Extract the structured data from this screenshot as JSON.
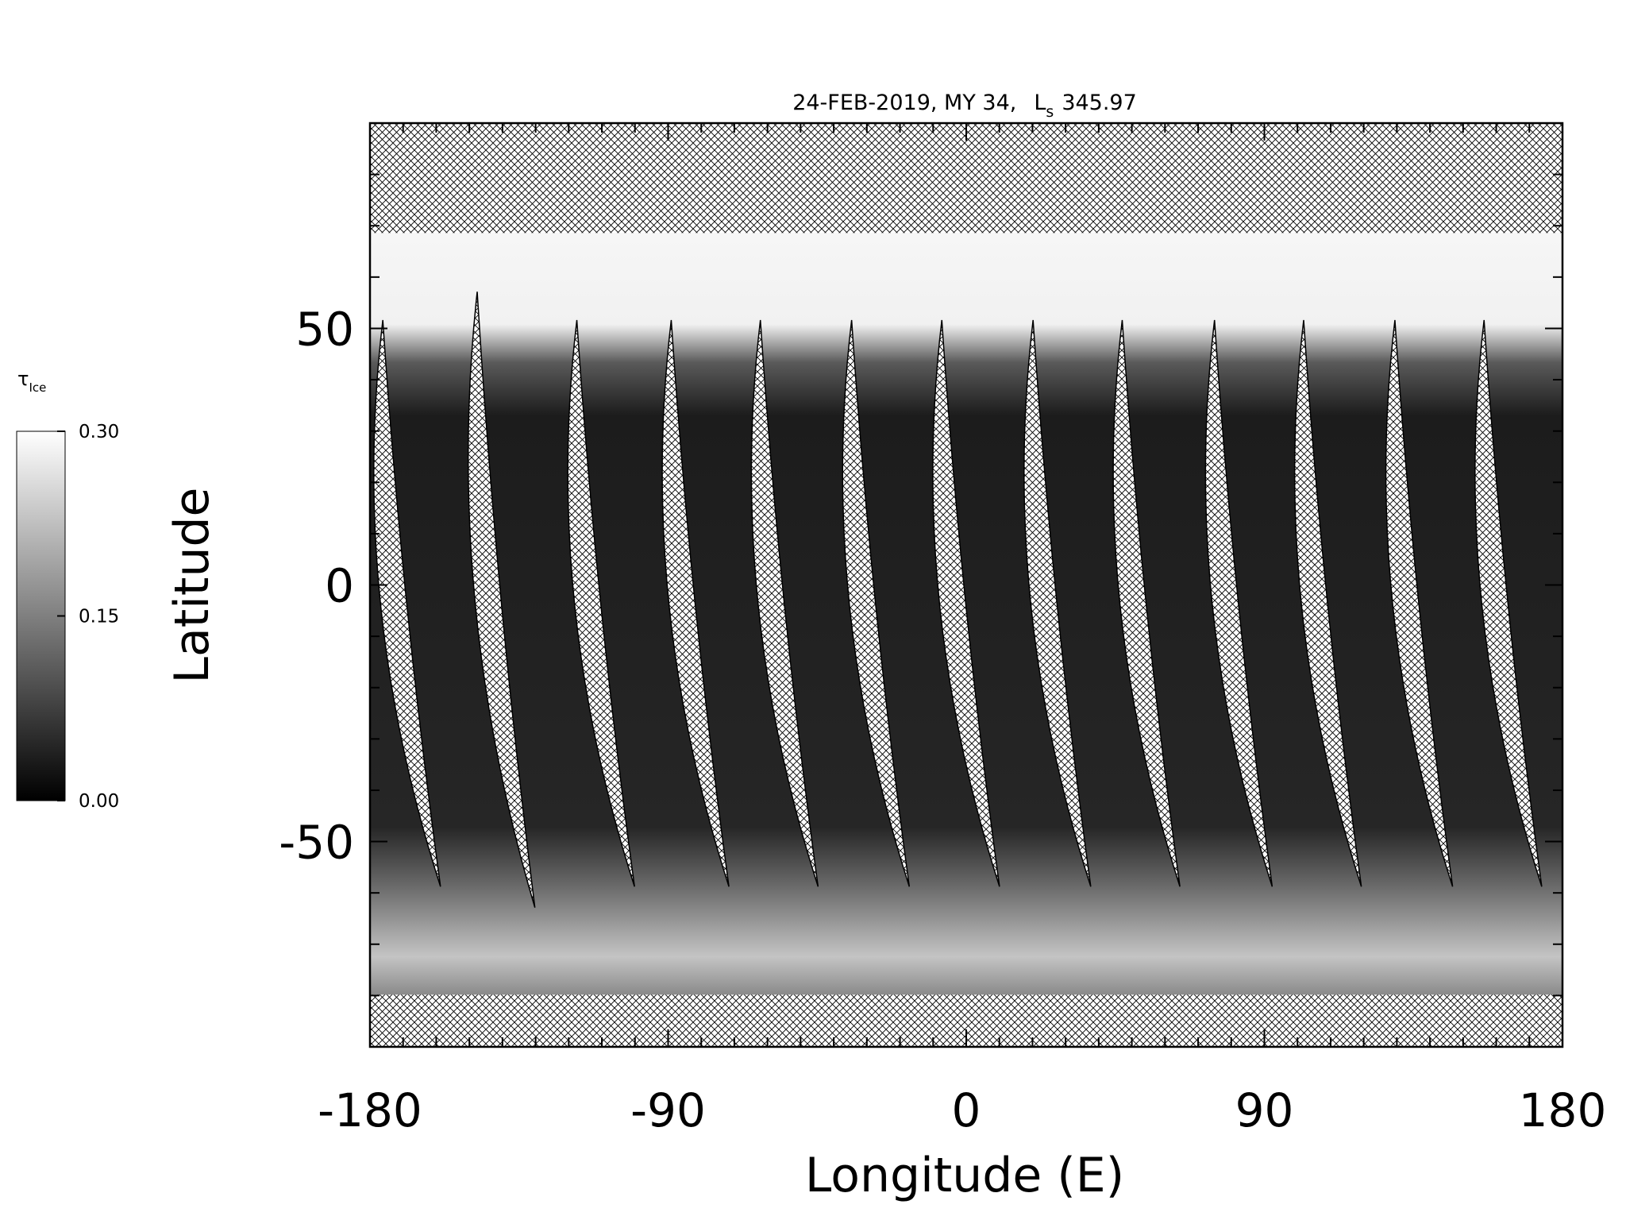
{
  "chart_data": {
    "type": "map",
    "title": "24-FEB-2019, MY 34,",
    "title_symbol": "L",
    "title_subscript": "s",
    "title_value": "345.97",
    "xlabel": "Longitude (E)",
    "ylabel": "Latitude",
    "xlim": [
      -180,
      180
    ],
    "xticks": [
      -180,
      -90,
      0,
      90,
      180
    ],
    "xminorticks": [
      -170,
      -160,
      -150,
      -140,
      -130,
      -120,
      -110,
      -100,
      -80,
      -70,
      -60,
      -50,
      -40,
      -30,
      -20,
      -10,
      10,
      20,
      30,
      40,
      50,
      60,
      70,
      80,
      100,
      110,
      120,
      130,
      140,
      150,
      160,
      170
    ],
    "ylim": [
      -90,
      90
    ],
    "yticks": [
      -50,
      0,
      50
    ],
    "yminorticks": [
      -80,
      -70,
      -60,
      -40,
      -30,
      -20,
      -10,
      10,
      20,
      30,
      40,
      60,
      70,
      80
    ],
    "colorbar": {
      "symbol": "τ",
      "subscript": "Ice",
      "lim": [
        0,
        0.3
      ],
      "ticks": [
        {
          "value": 0,
          "label": "0.00"
        },
        {
          "value": 0.15,
          "label": "0.15"
        },
        {
          "value": 0.3,
          "label": "0.30"
        }
      ],
      "colors": [
        "#000000",
        "#ffffff"
      ]
    }
  }
}
